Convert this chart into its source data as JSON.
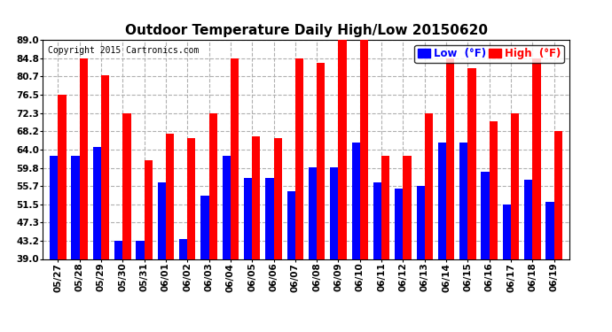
{
  "title": "Outdoor Temperature Daily High/Low 20150620",
  "copyright": "Copyright 2015 Cartronics.com",
  "legend_low": "Low  (°F)",
  "legend_high": "High  (°F)",
  "dates": [
    "05/27",
    "05/28",
    "05/29",
    "05/30",
    "05/31",
    "06/01",
    "06/02",
    "06/03",
    "06/04",
    "06/05",
    "06/06",
    "06/07",
    "06/08",
    "06/09",
    "06/10",
    "06/11",
    "06/12",
    "06/13",
    "06/14",
    "06/15",
    "06/16",
    "06/17",
    "06/18",
    "06/19"
  ],
  "highs": [
    76.5,
    84.8,
    81.0,
    72.3,
    61.5,
    67.5,
    66.5,
    72.3,
    84.8,
    67.0,
    66.5,
    84.8,
    83.8,
    89.0,
    89.0,
    62.5,
    62.5,
    72.3,
    84.8,
    82.5,
    70.5,
    72.3,
    84.8,
    68.2
  ],
  "lows": [
    62.5,
    62.5,
    64.5,
    43.2,
    43.2,
    56.5,
    43.5,
    53.5,
    62.5,
    57.5,
    57.5,
    54.5,
    60.0,
    60.0,
    65.5,
    56.5,
    55.0,
    55.7,
    65.5,
    65.5,
    59.0,
    51.5,
    57.0,
    52.0
  ],
  "ymin": 39.0,
  "ymax": 89.0,
  "yticks": [
    39.0,
    43.2,
    47.3,
    51.5,
    55.7,
    59.8,
    64.0,
    68.2,
    72.3,
    76.5,
    80.7,
    84.8,
    89.0
  ],
  "bar_width": 0.38,
  "high_color": "#ff0000",
  "low_color": "#0000ff",
  "bg_color": "#ffffff",
  "grid_color": "#b0b0b0",
  "title_fontsize": 11,
  "tick_fontsize": 7.5,
  "legend_fontsize": 8.5
}
